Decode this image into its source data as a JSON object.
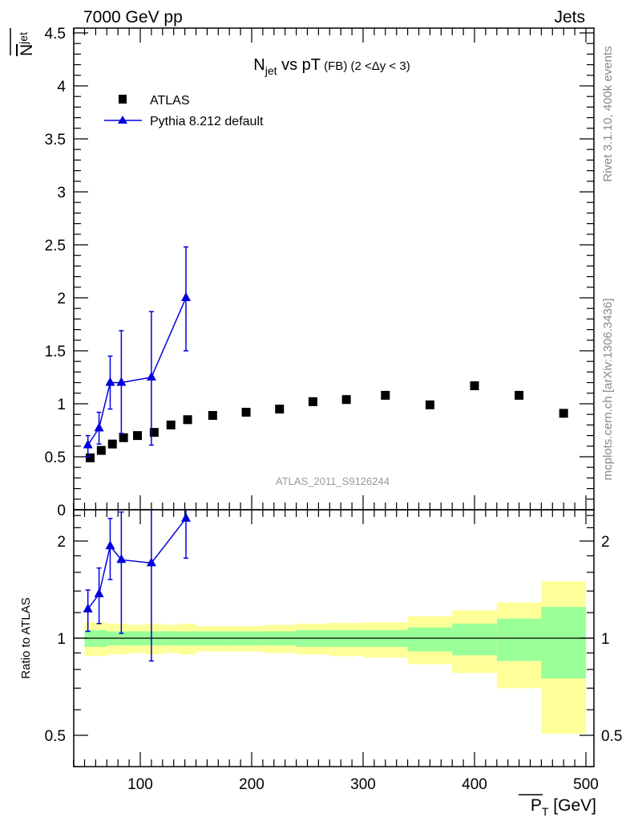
{
  "header": {
    "left": "7000 GeV pp",
    "right": "Jets"
  },
  "side_text": {
    "top": "Rivet 3.1.10,  400k events",
    "bottom": "mcplots.cern.ch [arXiv:1306.3436]"
  },
  "watermark": "ATLAS_2011_S9126244",
  "colors": {
    "data": "#000000",
    "mc": "#0000dd",
    "band_outer": "#ffff99",
    "band_inner": "#99ff99",
    "side_text": "#888888"
  },
  "chart_data": [
    {
      "type": "scatter",
      "title": {
        "main": "N",
        "sub": "jet",
        "rest": " vs pT",
        "small": " (FB) (2 <Δy < 3)"
      },
      "ylabel": {
        "main": "N",
        "sub": "jet"
      },
      "xlabel": {
        "main": "P",
        "sub": "T",
        "unit": " [GeV]"
      },
      "xlim": [
        36,
        509
      ],
      "ylim": [
        0,
        4.55
      ],
      "yticks": [
        "0",
        "0.5",
        "1",
        "1.5",
        "2",
        "2.5",
        "3",
        "3.5",
        "4",
        "4.5"
      ],
      "xticks": [
        "100",
        "200",
        "300",
        "400",
        "500"
      ],
      "legend": {
        "placement": "top-left",
        "entries": [
          "ATLAS",
          "Pythia 8.212 default"
        ]
      },
      "series": [
        {
          "name": "ATLAS",
          "marker": "square",
          "x": [
            55,
            65,
            75,
            85,
            97.5,
            112.5,
            127.5,
            142.5,
            165,
            195,
            225,
            255,
            285,
            320,
            360,
            400,
            440,
            480
          ],
          "y": [
            0.49,
            0.56,
            0.62,
            0.68,
            0.7,
            0.73,
            0.8,
            0.85,
            0.89,
            0.92,
            0.95,
            1.02,
            1.04,
            1.08,
            0.99,
            1.17,
            1.08,
            0.91
          ]
        },
        {
          "name": "Pythia 8.212 default",
          "marker": "triangle",
          "x": [
            53,
            63,
            73,
            83,
            110,
            141
          ],
          "y": [
            0.61,
            0.77,
            1.2,
            1.2,
            1.25,
            2.0
          ],
          "yerr_low": [
            0.5,
            0.62,
            0.95,
            0.72,
            0.61,
            1.5
          ],
          "yerr_high": [
            0.7,
            0.92,
            1.45,
            1.69,
            1.87,
            2.48
          ]
        }
      ]
    },
    {
      "type": "line",
      "ylabel": "Ratio to ATLAS",
      "yscale": "log",
      "ylim": [
        0.4,
        2.5
      ],
      "yticks": [
        "0.5",
        "1",
        "2"
      ],
      "yticks_values": [
        0.5,
        1,
        2
      ],
      "bands": {
        "bin_edges": [
          50,
          60,
          70,
          80,
          90,
          105,
          120,
          135,
          150,
          180,
          210,
          240,
          270,
          300,
          340,
          380,
          420,
          460,
          500
        ],
        "outer_high": [
          1.12,
          1.12,
          1.11,
          1.11,
          1.1,
          1.11,
          1.1,
          1.11,
          1.09,
          1.09,
          1.1,
          1.11,
          1.115,
          1.12,
          1.17,
          1.22,
          1.29,
          1.5
        ],
        "outer_low": [
          0.88,
          0.88,
          0.89,
          0.89,
          0.9,
          0.89,
          0.9,
          0.89,
          0.91,
          0.91,
          0.9,
          0.89,
          0.88,
          0.87,
          0.83,
          0.78,
          0.7,
          0.506
        ],
        "inner_high": [
          1.06,
          1.06,
          1.05,
          1.05,
          1.05,
          1.05,
          1.05,
          1.05,
          1.05,
          1.05,
          1.05,
          1.06,
          1.06,
          1.06,
          1.08,
          1.11,
          1.15,
          1.25
        ],
        "inner_low": [
          0.94,
          0.94,
          0.95,
          0.95,
          0.95,
          0.95,
          0.95,
          0.95,
          0.95,
          0.95,
          0.95,
          0.94,
          0.94,
          0.94,
          0.91,
          0.885,
          0.85,
          0.75
        ]
      },
      "series": [
        {
          "name": "Pythia 8.212 default / ATLAS",
          "x": [
            53,
            63,
            73,
            83,
            110,
            141
          ],
          "y": [
            1.23,
            1.37,
            1.93,
            1.75,
            1.71,
            2.35
          ],
          "yerr_low": [
            1.05,
            1.11,
            1.52,
            1.035,
            0.85,
            1.77
          ],
          "yerr_high": [
            1.41,
            1.65,
            2.35,
            2.46,
            3.0,
            3.0
          ]
        }
      ]
    }
  ]
}
